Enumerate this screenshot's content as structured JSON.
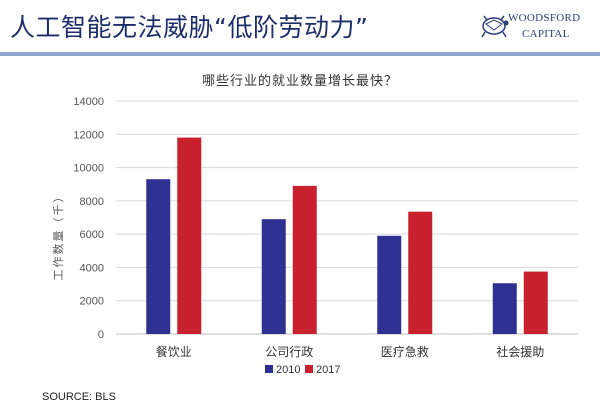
{
  "header": {
    "headline": "人工智能无法威胁“低阶劳动力”",
    "brand_line1": "WOODSFORD",
    "brand_line2": "CAPITAL"
  },
  "source": "SOURCE: BLS",
  "colors": {
    "s2010": "#2e3192",
    "s2017": "#c8202d",
    "rule": "#8fa6cf",
    "grid": "#d9d9d9"
  },
  "chart_data": {
    "type": "bar",
    "title": "哪些行业的就业数量增长最快？",
    "ylabel": "工作数量（千）",
    "xlabel": "",
    "categories": [
      "餐饮业",
      "公司行政",
      "医疗急救",
      "社会援助"
    ],
    "series": [
      {
        "name": "2010",
        "values": [
          9300,
          6900,
          5900,
          3050
        ]
      },
      {
        "name": "2017",
        "values": [
          11800,
          8900,
          7350,
          3750
        ]
      }
    ],
    "ylim": [
      0,
      14000
    ],
    "yticks": [
      0,
      2000,
      4000,
      6000,
      8000,
      10000,
      12000,
      14000
    ],
    "grid": true,
    "legend": "bottom-center"
  }
}
